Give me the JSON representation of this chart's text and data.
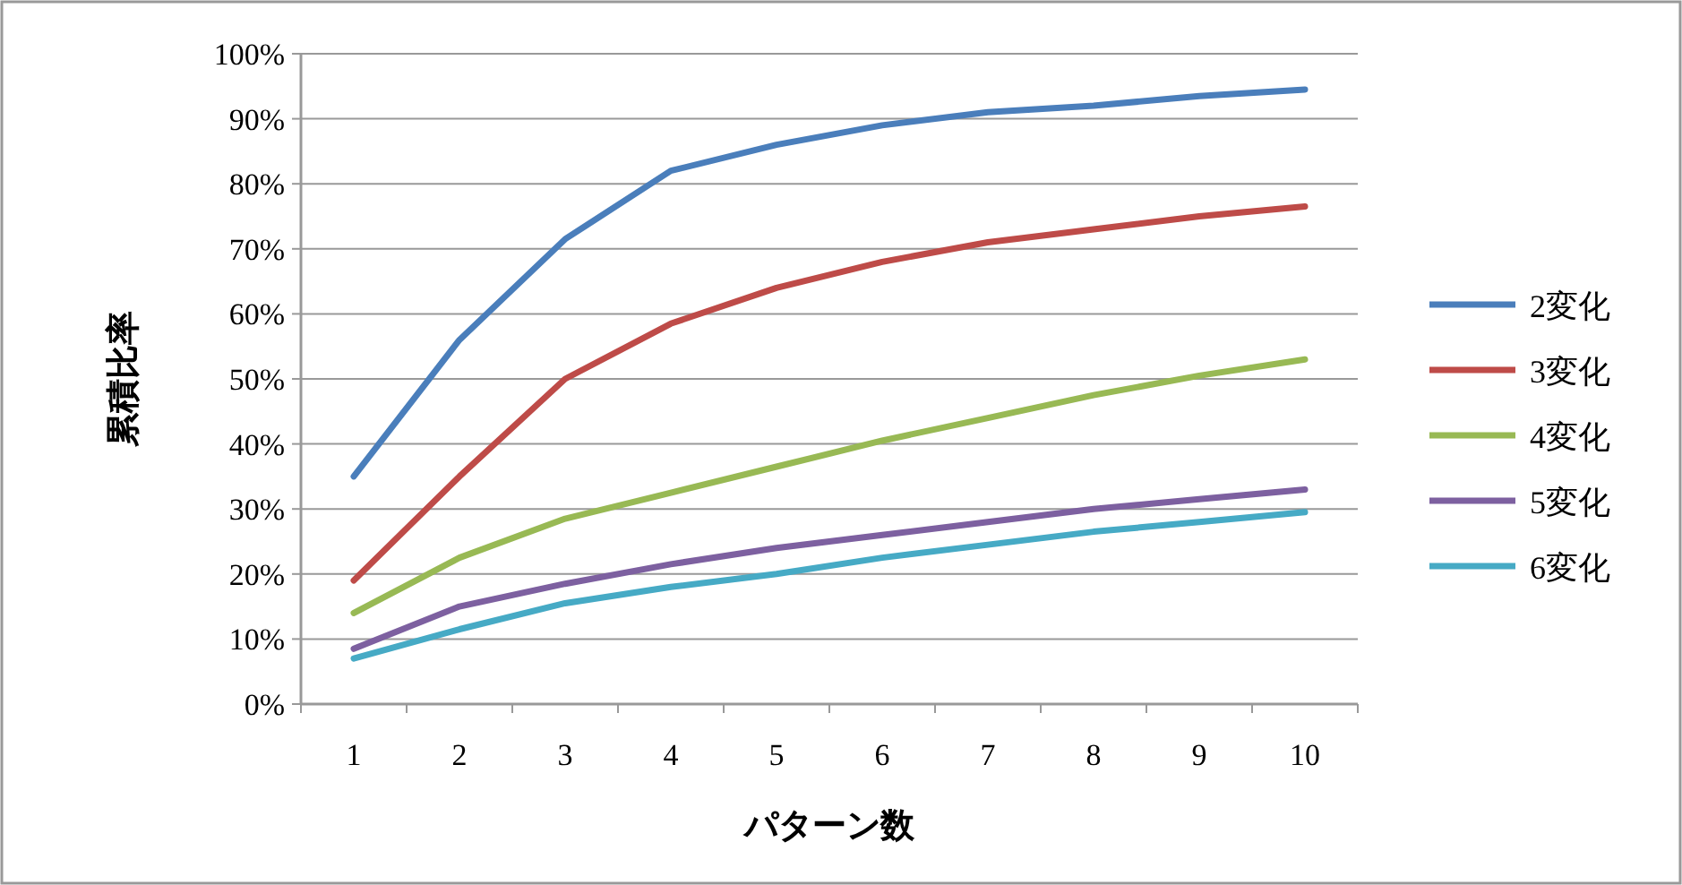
{
  "chart_data": {
    "type": "line",
    "xlabel": "パターン数",
    "ylabel": "累積比率",
    "categories": [
      "1",
      "2",
      "3",
      "4",
      "5",
      "6",
      "7",
      "8",
      "9",
      "10"
    ],
    "ylim": [
      0,
      100
    ],
    "yticks": [
      {
        "value": 0,
        "label": "0%"
      },
      {
        "value": 10,
        "label": "10%"
      },
      {
        "value": 20,
        "label": "20%"
      },
      {
        "value": 30,
        "label": "30%"
      },
      {
        "value": 40,
        "label": "40%"
      },
      {
        "value": 50,
        "label": "50%"
      },
      {
        "value": 60,
        "label": "60%"
      },
      {
        "value": 70,
        "label": "70%"
      },
      {
        "value": 80,
        "label": "80%"
      },
      {
        "value": 90,
        "label": "90%"
      },
      {
        "value": 100,
        "label": "100%"
      }
    ],
    "grid": "y",
    "legend": "right",
    "marker": "none",
    "series": [
      {
        "name": "2変化",
        "color": "#4a7ebb",
        "values": [
          35,
          56,
          71.5,
          82,
          86,
          89,
          91,
          92,
          93.5,
          94.5
        ]
      },
      {
        "name": "3変化",
        "color": "#be4b48",
        "values": [
          19,
          35,
          50,
          58.5,
          64,
          68,
          71,
          73,
          75,
          76.5
        ]
      },
      {
        "name": "4変化",
        "color": "#98b954",
        "values": [
          14,
          22.5,
          28.5,
          32.5,
          36.5,
          40.5,
          44,
          47.5,
          50.5,
          53
        ]
      },
      {
        "name": "5変化",
        "color": "#7d60a0",
        "values": [
          8.5,
          15,
          18.5,
          21.5,
          24,
          26,
          28,
          30,
          31.5,
          33
        ]
      },
      {
        "name": "6変化",
        "color": "#46aac5",
        "values": [
          7,
          11.5,
          15.5,
          18,
          20,
          22.5,
          24.5,
          26.5,
          28,
          29.5
        ]
      }
    ]
  }
}
